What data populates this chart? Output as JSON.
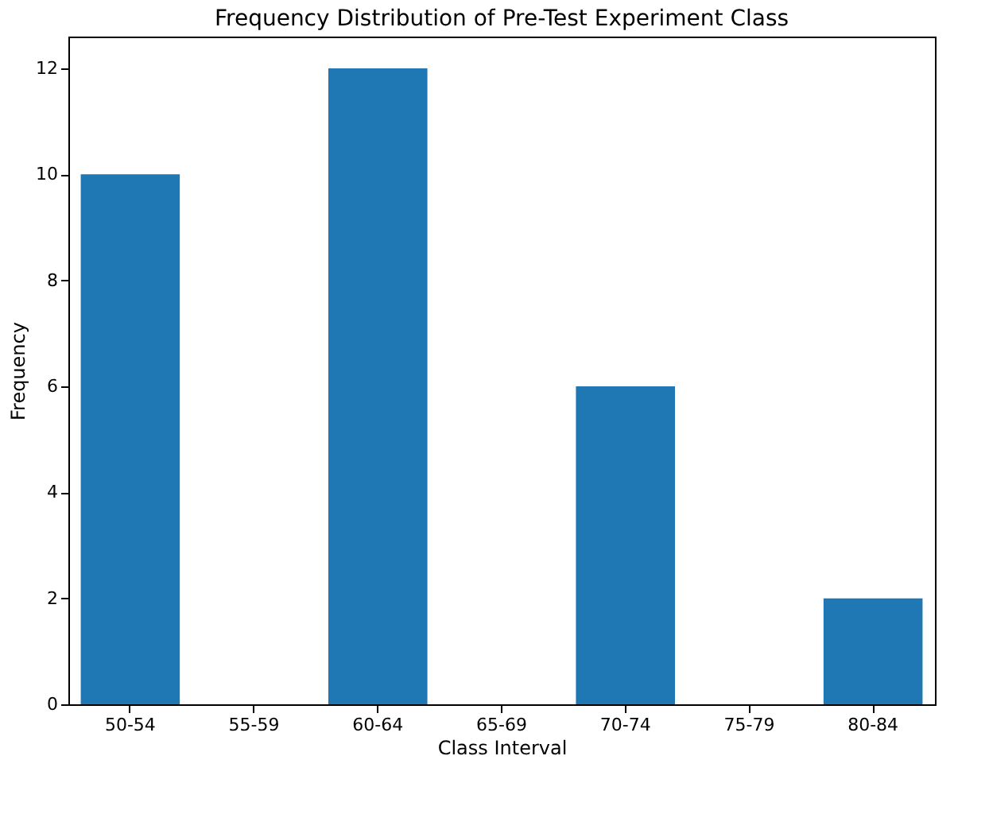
{
  "chart_data": {
    "type": "bar",
    "title": "Frequency Distribution of Pre-Test Experiment Class",
    "xlabel": "Class Interval",
    "ylabel": "Frequency",
    "categories": [
      "50-54",
      "55-59",
      "60-64",
      "65-69",
      "70-74",
      "75-79",
      "80-84"
    ],
    "values": [
      10,
      0,
      12,
      0,
      6,
      0,
      2
    ],
    "color": "#1f77b4",
    "ylim": [
      0,
      12.6
    ],
    "yticks": [
      0,
      2,
      4,
      6,
      8,
      10,
      12
    ],
    "grid": false
  }
}
